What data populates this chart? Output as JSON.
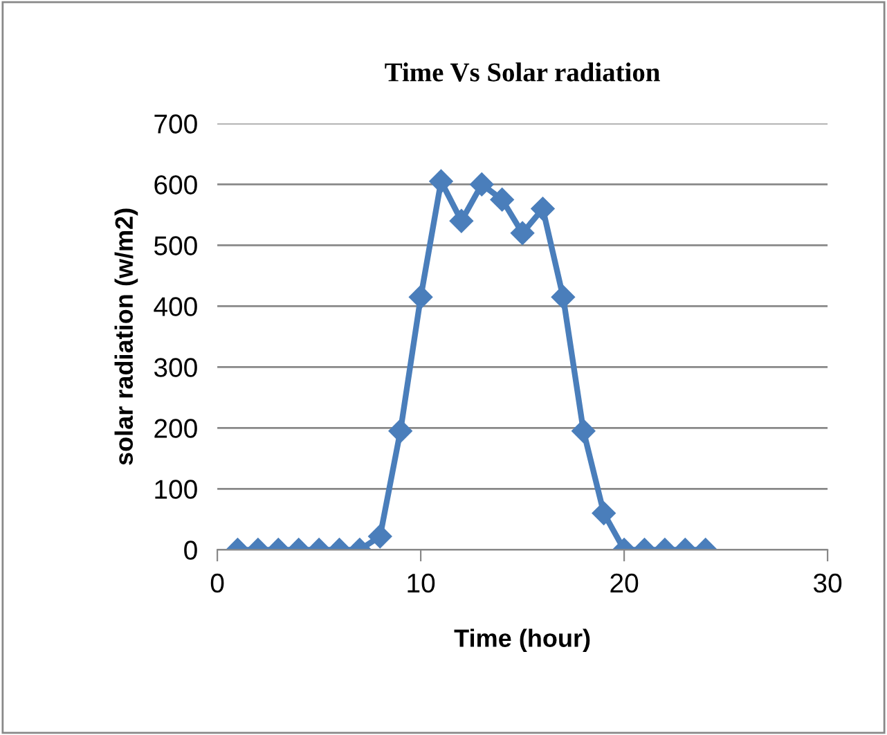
{
  "chart_data": {
    "type": "line",
    "title": "Time Vs Solar radiation",
    "xlabel": "Time (hour)",
    "ylabel": "solar radiation (w/m2)",
    "x": [
      1,
      2,
      3,
      4,
      5,
      6,
      7,
      8,
      9,
      10,
      11,
      12,
      13,
      14,
      15,
      16,
      17,
      18,
      19,
      20,
      21,
      22,
      23,
      24
    ],
    "series": [
      {
        "color": "#4a7ebb",
        "values": [
          0,
          0,
          0,
          0,
          0,
          0,
          0,
          22,
          195,
          415,
          605,
          540,
          600,
          575,
          520,
          560,
          415,
          195,
          60,
          0,
          0,
          0,
          0,
          0
        ]
      }
    ],
    "xlim": [
      0,
      30
    ],
    "xticks": [
      0,
      10,
      20,
      30
    ],
    "ylim": [
      0,
      700
    ],
    "yticks": [
      0,
      100,
      200,
      300,
      400,
      500,
      600,
      700
    ],
    "grid": "y",
    "legend": false,
    "marker": "diamond",
    "line_style": "solid"
  }
}
